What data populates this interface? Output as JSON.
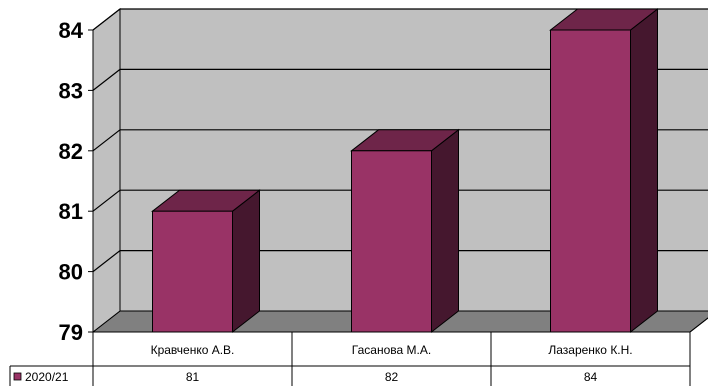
{
  "chart_data": {
    "type": "bar",
    "categories": [
      "Кравченко А.В.",
      "Гасанова М.А.",
      "Лазаренко К.Н."
    ],
    "series": [
      {
        "name": "2020/21",
        "values": [
          81,
          82,
          84
        ],
        "color": "#993366"
      }
    ],
    "ylim": [
      79,
      84
    ],
    "yticks": [
      79,
      80,
      81,
      82,
      83,
      84
    ],
    "grid": true,
    "data_table": true,
    "wall_color": "#c0c0c0",
    "floor_color": "#808080"
  }
}
